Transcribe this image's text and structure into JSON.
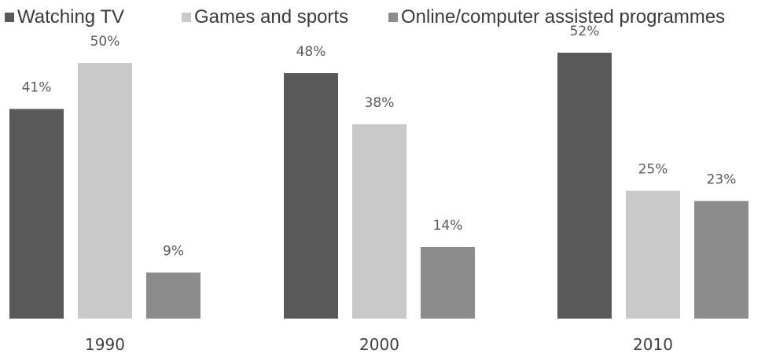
{
  "chart_data": {
    "type": "bar",
    "categories": [
      "1990",
      "2000",
      "2010"
    ],
    "series": [
      {
        "name": "Watching TV",
        "values": [
          41,
          48,
          52
        ],
        "color": "#595959"
      },
      {
        "name": "Games and sports",
        "values": [
          50,
          38,
          25
        ],
        "color": "#c9c9c9"
      },
      {
        "name": "Online/computer assisted programmes",
        "values": [
          9,
          14,
          23
        ],
        "color": "#8c8c8c"
      }
    ],
    "value_suffix": "%",
    "title": "",
    "xlabel": "",
    "ylabel": "",
    "ylim": [
      0,
      52
    ],
    "grid": false,
    "axes_visible": false,
    "legend_position": "top"
  }
}
